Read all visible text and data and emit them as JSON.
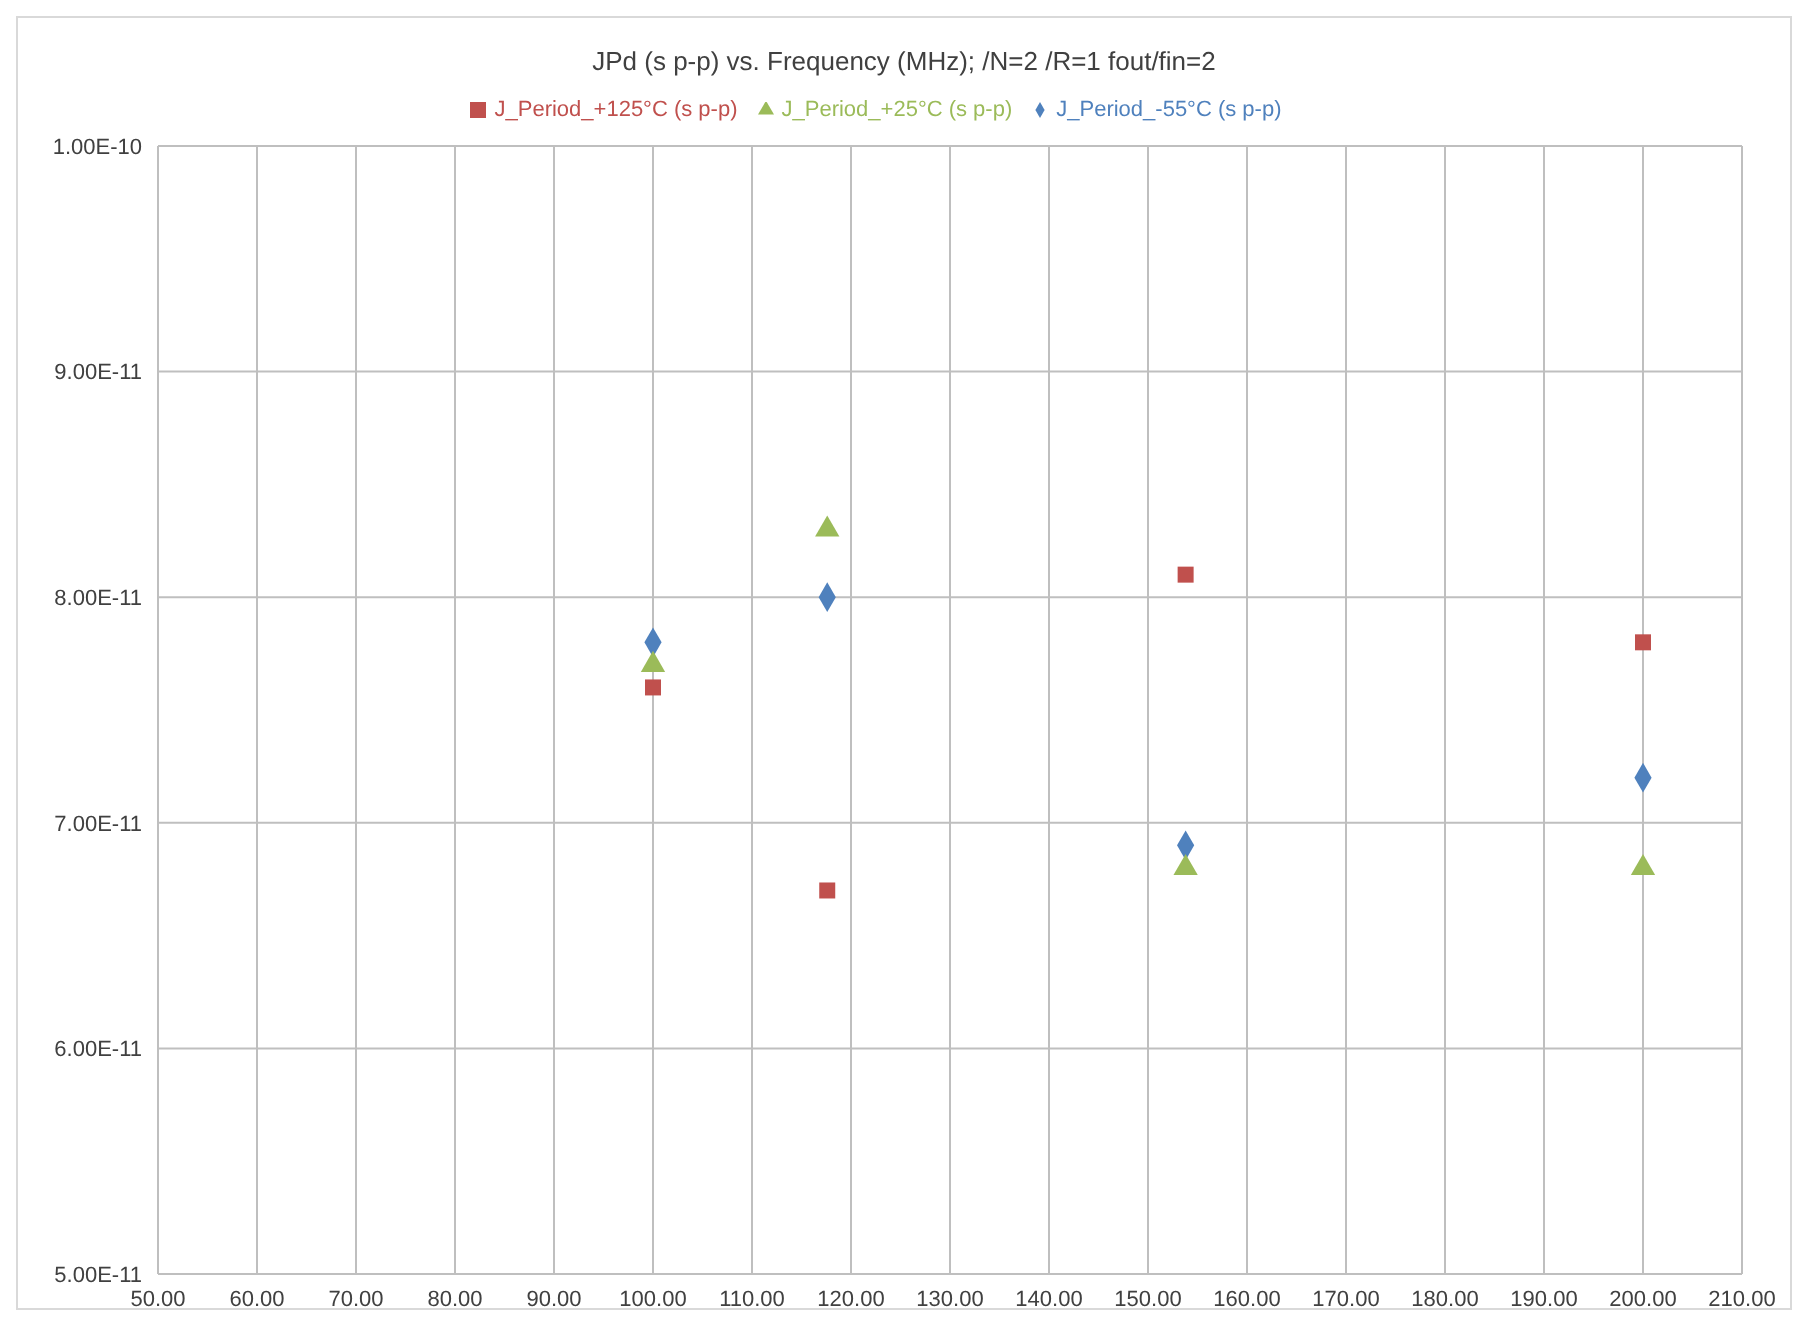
{
  "chart_data": {
    "type": "scatter",
    "title": "JPd (s p-p) vs. Frequency (MHz);  /N=2  /R=1  fout/fin=2",
    "x": [
      100,
      117.6,
      153.8,
      200
    ],
    "series": [
      {
        "name": "J_Period_-55°C (s p-p)",
        "color": "#4f81bd",
        "marker": "diamond",
        "values": [
          7.8e-11,
          8e-11,
          6.9e-11,
          7.2e-11
        ]
      },
      {
        "name": "J_Period_+125°C (s p-p)",
        "color": "#c0504d",
        "marker": "square",
        "values": [
          7.6e-11,
          6.7e-11,
          8.1e-11,
          7.8e-11
        ]
      },
      {
        "name": "J_Period_+25°C (s p-p)",
        "color": "#9bbb59",
        "marker": "triangle",
        "values": [
          7.7e-11,
          8.3e-11,
          6.8e-11,
          6.8e-11
        ]
      }
    ],
    "xlim": [
      50,
      210
    ],
    "xticks": [
      {
        "value": 50,
        "label": "50.00"
      },
      {
        "value": 60,
        "label": "60.00"
      },
      {
        "value": 70,
        "label": "70.00"
      },
      {
        "value": 80,
        "label": "80.00"
      },
      {
        "value": 90,
        "label": "90.00"
      },
      {
        "value": 100,
        "label": "100.00"
      },
      {
        "value": 110,
        "label": "110.00"
      },
      {
        "value": 120,
        "label": "120.00"
      },
      {
        "value": 130,
        "label": "130.00"
      },
      {
        "value": 140,
        "label": "140.00"
      },
      {
        "value": 150,
        "label": "150.00"
      },
      {
        "value": 160,
        "label": "160.00"
      },
      {
        "value": 170,
        "label": "170.00"
      },
      {
        "value": 180,
        "label": "180.00"
      },
      {
        "value": 190,
        "label": "190.00"
      },
      {
        "value": 200,
        "label": "200.00"
      },
      {
        "value": 210,
        "label": "210.00"
      }
    ],
    "ylim": [
      5e-11,
      1e-10
    ],
    "yticks": [
      {
        "value": 5e-11,
        "label": "5.00E-11"
      },
      {
        "value": 6e-11,
        "label": "6.00E-11"
      },
      {
        "value": 7e-11,
        "label": "7.00E-11"
      },
      {
        "value": 8e-11,
        "label": "8.00E-11"
      },
      {
        "value": 9e-11,
        "label": "9.00E-11"
      },
      {
        "value": 1e-10,
        "label": "1.00E-10"
      }
    ],
    "grid": true,
    "legend": "top"
  }
}
